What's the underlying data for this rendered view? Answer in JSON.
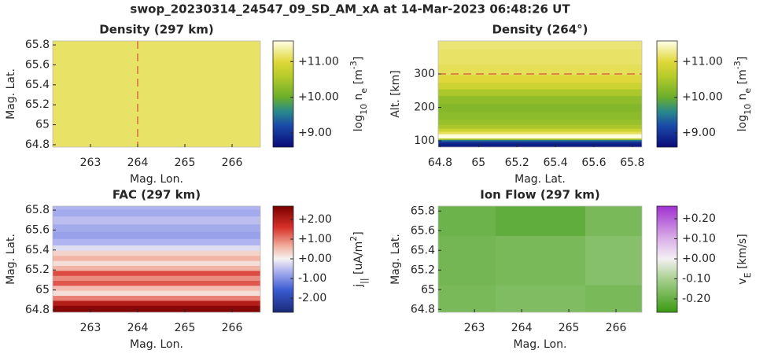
{
  "title": "swop_20230314_24547_09_SD_AM_xA at 14-Mar-2023 06:48:26 UT",
  "chart_data": [
    {
      "type": "heatmap",
      "title": "Density (297 km)",
      "xlabel": "Mag. Lon.",
      "ylabel": "Mag. Lat.",
      "colorbar_label": [
        {
          "text": "log"
        },
        {
          "text": "10",
          "shift": "sub"
        },
        {
          "text": " n"
        },
        {
          "text": "e",
          "shift": "sub"
        },
        {
          "text": " [m"
        },
        {
          "text": "-3",
          "shift": "super"
        },
        {
          "text": "]"
        }
      ],
      "xlim": [
        262.2,
        266.6
      ],
      "xticks": [
        263,
        264,
        265,
        266
      ],
      "ylim": [
        64.776,
        65.84
      ],
      "yticks": [
        64.8,
        65,
        65.2,
        65.4,
        65.6,
        65.8
      ],
      "clim": [
        8.6,
        11.58
      ],
      "cticks": [
        {
          "value": 9,
          "label": "+9.00"
        },
        {
          "value": 10,
          "label": "+10.00"
        },
        {
          "value": 11,
          "label": "+11.00"
        }
      ],
      "colormap": [
        [
          8.6,
          "#0a0a78"
        ],
        [
          9.2,
          "#1a4aa8"
        ],
        [
          9.6,
          "#2a8a8a"
        ],
        [
          10.0,
          "#6aae2a"
        ],
        [
          10.6,
          "#b8cc2a"
        ],
        [
          11.0,
          "#e0d83a"
        ],
        [
          11.58,
          "#ffffe8"
        ]
      ],
      "vline": 264,
      "line_color": "#d03030",
      "z_x": [
        264.4
      ],
      "z_y": [
        65.3
      ],
      "z": [
        [
          11.15
        ]
      ]
    },
    {
      "type": "heatmap",
      "title": "Density (264°)",
      "xlabel": "Mag. Lat.",
      "ylabel": "Alt. [km]",
      "colorbar_label": [
        {
          "text": "log"
        },
        {
          "text": "10",
          "shift": "sub"
        },
        {
          "text": " n"
        },
        {
          "text": "e",
          "shift": "sub"
        },
        {
          "text": " [m"
        },
        {
          "text": "-3",
          "shift": "super"
        },
        {
          "text": "]"
        }
      ],
      "xlim": [
        64.79,
        65.85
      ],
      "xticks": [
        64.8,
        65,
        65.2,
        65.4,
        65.6,
        65.8
      ],
      "ylim": [
        81,
        399
      ],
      "yticks": [
        100,
        200,
        300
      ],
      "clim": [
        8.6,
        11.58
      ],
      "cticks": [
        {
          "value": 9,
          "label": "+9.00"
        },
        {
          "value": 10,
          "label": "+10.00"
        },
        {
          "value": 11,
          "label": "+11.00"
        }
      ],
      "colormap": [
        [
          8.6,
          "#0a0a78"
        ],
        [
          9.2,
          "#1a4aa8"
        ],
        [
          9.6,
          "#2a8a8a"
        ],
        [
          10.0,
          "#6aae2a"
        ],
        [
          10.6,
          "#b8cc2a"
        ],
        [
          11.0,
          "#e0d83a"
        ],
        [
          11.58,
          "#ffffe8"
        ]
      ],
      "hline": 300,
      "line_color": "#d03030",
      "z_x": [
        65.3
      ],
      "z_y": [
        81,
        90,
        97,
        102,
        106,
        110,
        114,
        118,
        124,
        132,
        142,
        155,
        175,
        200,
        225,
        245,
        265,
        285,
        310,
        350,
        399
      ],
      "z": [
        [
          8.7
        ],
        [
          8.8
        ],
        [
          9.0
        ],
        [
          9.5
        ],
        [
          10.6
        ],
        [
          11.5
        ],
        [
          11.7
        ],
        [
          11.5
        ],
        [
          11.1
        ],
        [
          10.8
        ],
        [
          10.5
        ],
        [
          10.35
        ],
        [
          10.25
        ],
        [
          10.2
        ],
        [
          10.3
        ],
        [
          10.5
        ],
        [
          10.8
        ],
        [
          11.0
        ],
        [
          11.1
        ],
        [
          11.15
        ],
        [
          11.2
        ]
      ]
    },
    {
      "type": "heatmap",
      "title": "FAC (297 km)",
      "xlabel": "Mag. Lon.",
      "ylabel": "Mag. Lat.",
      "colorbar_label": [
        {
          "text": "j"
        },
        {
          "text": "||",
          "shift": "sub"
        },
        {
          "text": " [uA/m"
        },
        {
          "text": "2",
          "shift": "super"
        },
        {
          "text": "]"
        }
      ],
      "xlim": [
        262.2,
        266.6
      ],
      "xticks": [
        263,
        264,
        265,
        266
      ],
      "ylim": [
        64.776,
        65.84
      ],
      "yticks": [
        64.8,
        65,
        65.2,
        65.4,
        65.6,
        65.8
      ],
      "clim": [
        -2.72,
        2.68
      ],
      "cticks": [
        {
          "value": -2,
          "label": "-2.00"
        },
        {
          "value": -1,
          "label": "-1.00"
        },
        {
          "value": 0,
          "label": "+0.00"
        },
        {
          "value": 1,
          "label": "+1.00"
        },
        {
          "value": 2,
          "label": "+2.00"
        }
      ],
      "colormap": [
        [
          -2.72,
          "#1a2a78"
        ],
        [
          -1.6,
          "#3a5ad0"
        ],
        [
          -0.6,
          "#b0b4f0"
        ],
        [
          0,
          "#f6f2f2"
        ],
        [
          0.6,
          "#f2b4a4"
        ],
        [
          1.6,
          "#d83028"
        ],
        [
          2.68,
          "#780000"
        ]
      ],
      "z_x": [
        264.4
      ],
      "z_y": [
        64.78,
        64.82,
        64.87,
        64.92,
        64.97,
        65.02,
        65.07,
        65.12,
        65.17,
        65.22,
        65.27,
        65.32,
        65.37,
        65.42,
        65.48,
        65.55,
        65.62,
        65.7,
        65.78,
        65.84
      ],
      "z": [
        [
          2.6
        ],
        [
          2.5
        ],
        [
          2.0
        ],
        [
          1.0
        ],
        [
          0.2
        ],
        [
          0.5
        ],
        [
          1.3
        ],
        [
          0.9
        ],
        [
          1.4
        ],
        [
          0.6
        ],
        [
          0.2
        ],
        [
          0.6
        ],
        [
          0.3
        ],
        [
          -0.2
        ],
        [
          -0.6
        ],
        [
          -0.8
        ],
        [
          -0.7
        ],
        [
          -0.5
        ],
        [
          -0.7
        ],
        [
          -0.6
        ]
      ]
    },
    {
      "type": "heatmap",
      "title": "Ion Flow (297 km)",
      "xlabel": "Mag. Lon.",
      "ylabel": "Mag. Lat.",
      "colorbar_label": [
        {
          "text": "v"
        },
        {
          "text": "E",
          "shift": "sub"
        },
        {
          "text": " [km/s]"
        }
      ],
      "xlim": [
        262.23,
        266.55
      ],
      "xticks": [
        263,
        264,
        265,
        266
      ],
      "ylim": [
        64.77,
        65.85
      ],
      "yticks": [
        64.8,
        65,
        65.2,
        65.4,
        65.6,
        65.8
      ],
      "clim": [
        -0.267,
        0.263
      ],
      "cticks": [
        {
          "value": -0.2,
          "label": "-0.20"
        },
        {
          "value": -0.1,
          "label": "-0.10"
        },
        {
          "value": 0,
          "label": "+0.00"
        },
        {
          "value": 0.1,
          "label": "+0.10"
        },
        {
          "value": 0.2,
          "label": "+0.20"
        }
      ],
      "colormap": [
        [
          -0.267,
          "#3a9a10"
        ],
        [
          -0.1,
          "#a8d090"
        ],
        [
          0,
          "#f4f0f4"
        ],
        [
          0.1,
          "#dab0e8"
        ],
        [
          0.263,
          "#a030d0"
        ]
      ],
      "z_x": [
        262.5,
        264.4,
        266.3
      ],
      "z_y": [
        64.8,
        65.3,
        65.8
      ],
      "z": [
        [
          -0.17,
          -0.16,
          -0.17
        ],
        [
          -0.18,
          -0.17,
          -0.15
        ],
        [
          -0.19,
          -0.21,
          -0.17
        ]
      ]
    }
  ]
}
